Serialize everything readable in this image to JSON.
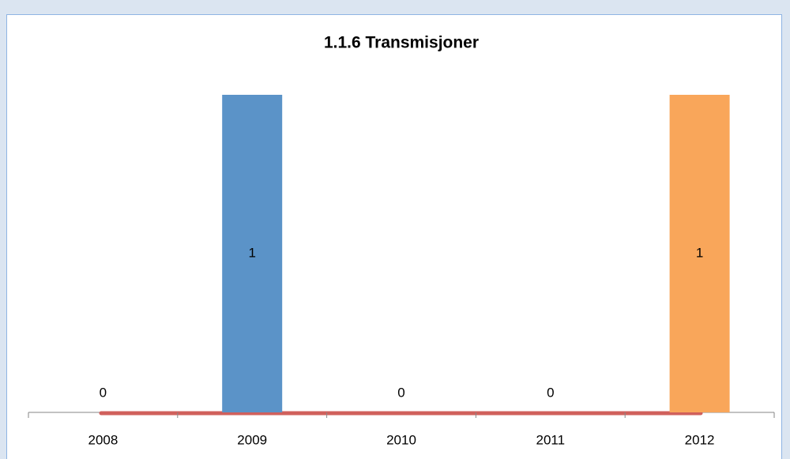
{
  "chart_data": {
    "type": "bar",
    "title": "1.1.6 Transmisjoner",
    "categories": [
      "2008",
      "2009",
      "2010",
      "2011",
      "2012"
    ],
    "values": [
      0,
      1,
      0,
      0,
      1
    ],
    "colors": [
      "#c0504d",
      "#5b93c8",
      "#9bbb59",
      "#8064a2",
      "#f9a65a"
    ],
    "ylim": [
      0,
      1
    ]
  }
}
